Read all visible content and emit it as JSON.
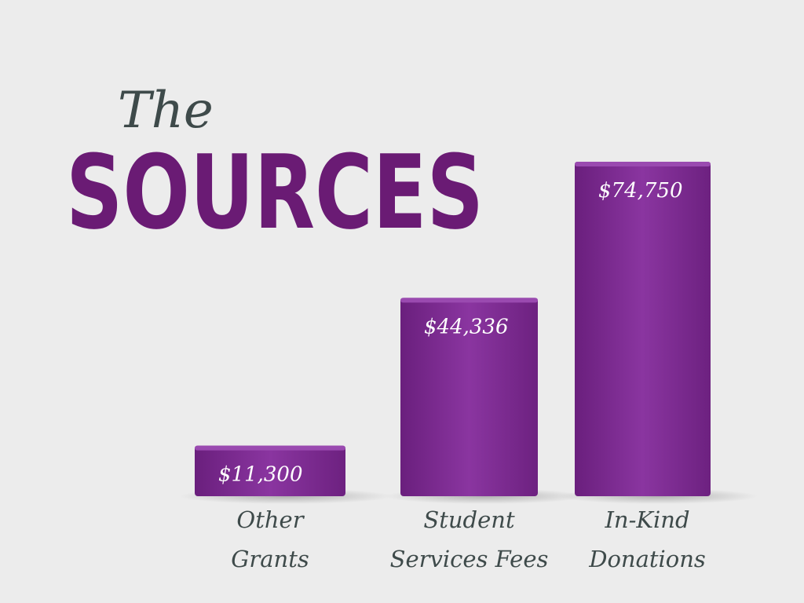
{
  "chart_data": {
    "type": "bar",
    "title_lines": [
      "The",
      "SOURCES"
    ],
    "categories": [
      "Other Grants",
      "Student Services Fees",
      "In-Kind Donations"
    ],
    "values": [
      11300,
      44336,
      74750
    ],
    "value_labels": [
      "$11,300",
      "$44,336",
      "$74,750"
    ],
    "color": "#7a2a8c"
  }
}
